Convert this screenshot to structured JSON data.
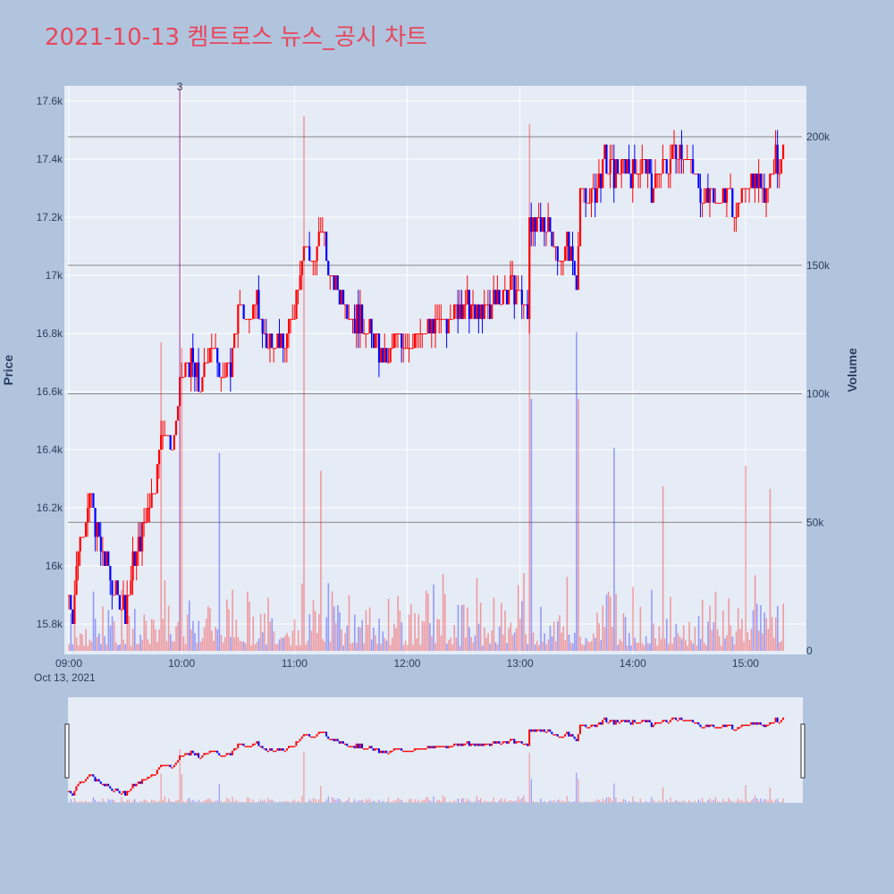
{
  "page": {
    "background": "#b0c4de",
    "plot_background": "#e5ecf6",
    "up_color": "#ff0000",
    "down_color": "#0000ff"
  },
  "chart_data": {
    "type": "candlestick",
    "title": "2021-10-13 켐트로스 뉴스_공시 차트",
    "ylabel": "Price",
    "y2label": "Volume",
    "date_label": "Oct 13, 2021",
    "ylim": [
      15700,
      17700
    ],
    "y2lim": [
      0,
      210000
    ],
    "xlim": [
      "09:00",
      "15:30"
    ],
    "price_ticks": [
      "15.8k",
      "16k",
      "16.2k",
      "16.4k",
      "16.6k",
      "16.8k",
      "17k",
      "17.2k",
      "17.4k",
      "17.6k"
    ],
    "volume_ticks": [
      "0",
      "50k",
      "100k",
      "150k",
      "200k"
    ],
    "time_ticks": [
      "09:00",
      "10:00",
      "11:00",
      "12:00",
      "13:00",
      "14:00",
      "15:00"
    ],
    "annotations": [
      {
        "time": "09:59",
        "text": "3"
      }
    ],
    "volume_spikes": [
      {
        "time": "09:59",
        "volume": 220000
      },
      {
        "time": "10:00",
        "volume": 118000
      },
      {
        "time": "09:49",
        "volume": 120000
      },
      {
        "time": "10:20",
        "volume": 77000
      },
      {
        "time": "11:05",
        "volume": 208000
      },
      {
        "time": "11:14",
        "volume": 70000
      },
      {
        "time": "13:05",
        "volume": 205000
      },
      {
        "time": "13:06",
        "volume": 98000
      },
      {
        "time": "13:30",
        "volume": 124000
      },
      {
        "time": "13:31",
        "volume": 98000
      },
      {
        "time": "13:50",
        "volume": 79000
      },
      {
        "time": "14:16",
        "volume": 64000
      },
      {
        "time": "15:00",
        "volume": 72000
      },
      {
        "time": "15:13",
        "volume": 63000
      }
    ],
    "price_path": [
      [
        "09:00",
        15900
      ],
      [
        "09:02",
        15850
      ],
      [
        "09:05",
        16050
      ],
      [
        "09:08",
        16150
      ],
      [
        "09:12",
        16250
      ],
      [
        "09:15",
        16100
      ],
      [
        "09:20",
        16000
      ],
      [
        "09:25",
        15900
      ],
      [
        "09:30",
        15850
      ],
      [
        "09:34",
        16000
      ],
      [
        "09:38",
        16100
      ],
      [
        "09:42",
        16200
      ],
      [
        "09:46",
        16300
      ],
      [
        "09:50",
        16500
      ],
      [
        "09:55",
        16400
      ],
      [
        "10:00",
        16650
      ],
      [
        "10:05",
        16700
      ],
      [
        "10:10",
        16600
      ],
      [
        "10:15",
        16750
      ],
      [
        "10:20",
        16700
      ],
      [
        "10:25",
        16650
      ],
      [
        "10:30",
        16900
      ],
      [
        "10:35",
        16850
      ],
      [
        "10:40",
        16900
      ],
      [
        "10:45",
        16750
      ],
      [
        "10:50",
        16800
      ],
      [
        "10:55",
        16750
      ],
      [
        "11:00",
        16900
      ],
      [
        "11:05",
        17100
      ],
      [
        "11:10",
        17050
      ],
      [
        "11:15",
        17150
      ],
      [
        "11:20",
        16950
      ],
      [
        "11:25",
        16950
      ],
      [
        "11:30",
        16850
      ],
      [
        "11:35",
        16850
      ],
      [
        "11:40",
        16800
      ],
      [
        "11:45",
        16750
      ],
      [
        "11:50",
        16700
      ],
      [
        "11:55",
        16800
      ],
      [
        "12:00",
        16750
      ],
      [
        "12:10",
        16800
      ],
      [
        "12:20",
        16850
      ],
      [
        "12:30",
        16900
      ],
      [
        "12:40",
        16850
      ],
      [
        "12:50",
        16950
      ],
      [
        "13:00",
        16950
      ],
      [
        "13:04",
        16850
      ],
      [
        "13:05",
        17200
      ],
      [
        "13:10",
        17150
      ],
      [
        "13:15",
        17200
      ],
      [
        "13:20",
        17050
      ],
      [
        "13:25",
        17100
      ],
      [
        "13:30",
        17000
      ],
      [
        "13:32",
        17300
      ],
      [
        "13:36",
        17250
      ],
      [
        "13:40",
        17300
      ],
      [
        "13:45",
        17400
      ],
      [
        "13:50",
        17350
      ],
      [
        "13:55",
        17400
      ],
      [
        "14:00",
        17350
      ],
      [
        "14:05",
        17400
      ],
      [
        "14:10",
        17300
      ],
      [
        "14:15",
        17350
      ],
      [
        "14:20",
        17400
      ],
      [
        "14:25",
        17450
      ],
      [
        "14:30",
        17400
      ],
      [
        "14:35",
        17300
      ],
      [
        "14:40",
        17300
      ],
      [
        "14:45",
        17250
      ],
      [
        "14:50",
        17300
      ],
      [
        "14:55",
        17200
      ],
      [
        "15:00",
        17300
      ],
      [
        "15:05",
        17350
      ],
      [
        "15:10",
        17300
      ],
      [
        "15:15",
        17400
      ],
      [
        "15:20",
        17400
      ]
    ]
  }
}
